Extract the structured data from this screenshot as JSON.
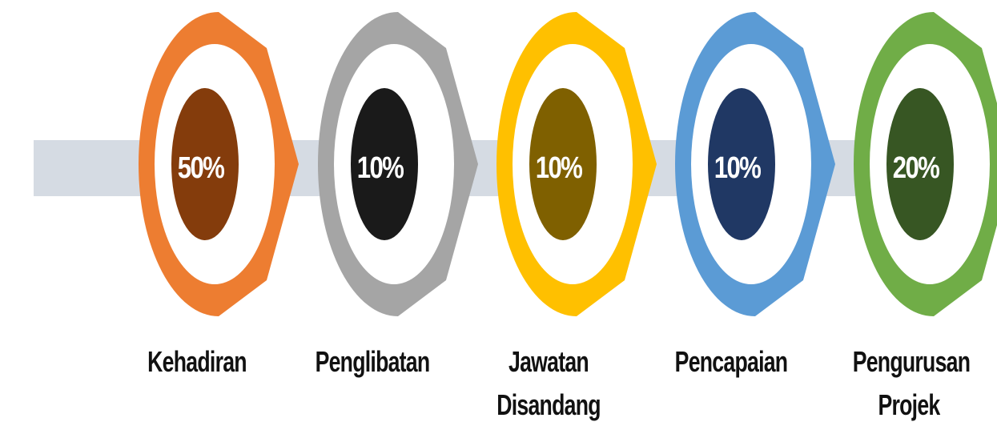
{
  "steps": [
    {
      "value": "50%",
      "label": "Kehadiran",
      "outer_color": "#ed7d31",
      "inner_color": "#843c0c"
    },
    {
      "value": "10%",
      "label": "Penglibatan",
      "outer_color": "#a5a5a5",
      "inner_color": "#1a1a1a"
    },
    {
      "value": "10%",
      "label": "Jawatan Disandang",
      "outer_color": "#ffc000",
      "inner_color": "#7f6000"
    },
    {
      "value": "10%",
      "label": "Pencapaian",
      "outer_color": "#5b9bd5",
      "inner_color": "#203864"
    },
    {
      "value": "20%",
      "label": "Pengurusan Projek",
      "outer_color": "#70ad47",
      "inner_color": "#375623"
    }
  ]
}
